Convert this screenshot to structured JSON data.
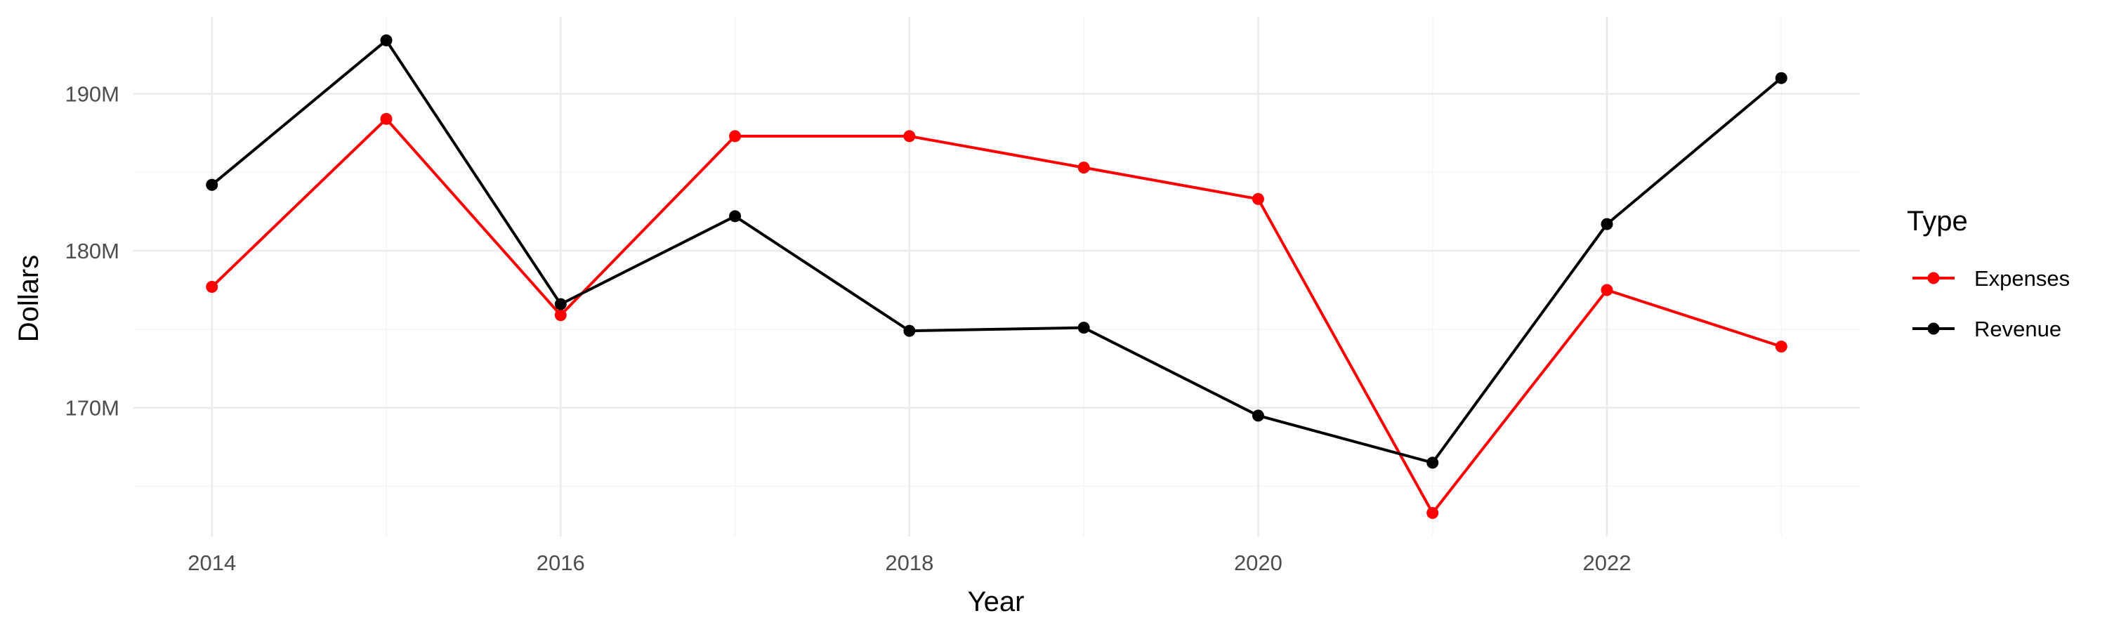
{
  "chart_data": {
    "type": "line",
    "title": "",
    "xlabel": "Year",
    "ylabel": "Dollars",
    "x": [
      2014,
      2015,
      2016,
      2017,
      2018,
      2019,
      2020,
      2021,
      2022,
      2023
    ],
    "series": [
      {
        "name": "Expenses",
        "color": "#ff0000",
        "values": [
          177.7,
          188.4,
          175.9,
          187.3,
          187.3,
          185.3,
          183.3,
          163.3,
          177.5,
          173.9
        ]
      },
      {
        "name": "Revenue",
        "color": "#000000",
        "values": [
          184.2,
          193.4,
          176.6,
          182.2,
          174.9,
          175.1,
          169.5,
          166.5,
          181.7,
          191.0
        ]
      }
    ],
    "xlim": [
      2013.55,
      2023.45
    ],
    "ylim": [
      161.8,
      194.9
    ],
    "x_ticks": [
      2014,
      2016,
      2018,
      2020,
      2022
    ],
    "x_tick_labels": [
      "2014",
      "2016",
      "2018",
      "2020",
      "2022"
    ],
    "x_minor_ticks": [
      2015,
      2017,
      2019,
      2021,
      2023
    ],
    "y_ticks": [
      170,
      180,
      190
    ],
    "y_tick_labels": [
      "170M",
      "180M",
      "190M"
    ],
    "y_minor_ticks": [
      165,
      175,
      185
    ],
    "y_unit": "millions of dollars",
    "grid": true,
    "legend": {
      "title": "Type",
      "position": "right",
      "entries": [
        "Expenses",
        "Revenue"
      ]
    }
  }
}
